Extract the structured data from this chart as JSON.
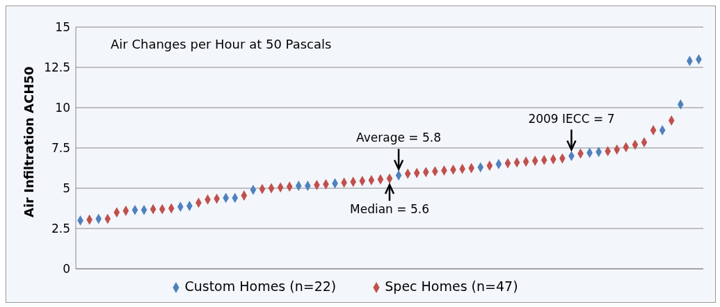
{
  "chart_data": {
    "type": "scatter",
    "title": "Air Changes per Hour at 50 Pascals",
    "ylabel": "Air Infiltration ACH50",
    "categories": [
      null,
      null,
      null,
      null,
      null,
      null,
      null,
      null,
      null,
      null,
      null,
      null,
      null,
      null,
      null,
      null,
      null,
      null,
      null,
      null,
      null,
      null,
      null,
      null,
      null,
      null,
      null,
      null,
      null,
      null,
      null,
      null,
      null,
      null,
      null,
      null,
      null,
      null,
      null,
      null,
      null,
      null,
      null,
      null,
      null,
      null,
      null,
      null,
      null,
      null,
      null,
      null,
      null,
      null,
      null,
      null,
      null,
      null,
      null,
      null,
      null,
      null,
      null,
      null,
      null,
      null,
      null,
      null,
      null
    ],
    "series": [
      {
        "name": "Custom Homes (n=22)",
        "color": "#4f81bd",
        "values": [
          3.0,
          null,
          3.1,
          null,
          null,
          null,
          3.65,
          3.65,
          null,
          null,
          null,
          3.85,
          3.9,
          null,
          null,
          null,
          4.4,
          4.4,
          null,
          4.9,
          null,
          null,
          null,
          null,
          5.15,
          5.15,
          null,
          null,
          5.3,
          null,
          null,
          null,
          null,
          null,
          null,
          5.8,
          null,
          null,
          null,
          null,
          null,
          null,
          null,
          null,
          6.3,
          null,
          6.5,
          null,
          null,
          null,
          null,
          null,
          null,
          null,
          7,
          null,
          7.2,
          7.25,
          null,
          null,
          null,
          null,
          null,
          null,
          8.6,
          null,
          10.2,
          12.9,
          13.0
        ]
      },
      {
        "name": "Spec Homes (n=47)",
        "color": "#c0504d",
        "values": [
          null,
          3.05,
          null,
          3.1,
          3.5,
          3.6,
          null,
          null,
          3.7,
          3.7,
          3.75,
          null,
          null,
          4.1,
          4.3,
          4.35,
          null,
          null,
          4.55,
          null,
          4.95,
          5.0,
          5.05,
          5.1,
          null,
          null,
          5.2,
          5.25,
          null,
          5.35,
          5.4,
          5.45,
          5.5,
          5.55,
          5.6,
          null,
          5.9,
          5.95,
          6.0,
          6.05,
          6.1,
          6.15,
          6.2,
          6.25,
          null,
          6.4,
          null,
          6.55,
          6.6,
          6.65,
          6.7,
          6.75,
          6.8,
          6.85,
          null,
          7.15,
          null,
          null,
          7.3,
          7.4,
          7.55,
          7.7,
          7.85,
          8.6,
          null,
          9.2,
          null,
          null,
          null
        ]
      }
    ],
    "ylim": [
      0,
      15
    ],
    "yticks": [
      0,
      2.5,
      5,
      7.5,
      10,
      12.5,
      15
    ],
    "grid": "y",
    "marker": "diamond",
    "legend": "bottom",
    "annotations": [
      {
        "text": "Average = 5.8",
        "y": 5.8
      },
      {
        "text": "Median = 5.6",
        "y": 5.6
      },
      {
        "text": "2009 IECC = 7",
        "y": 7
      }
    ]
  }
}
